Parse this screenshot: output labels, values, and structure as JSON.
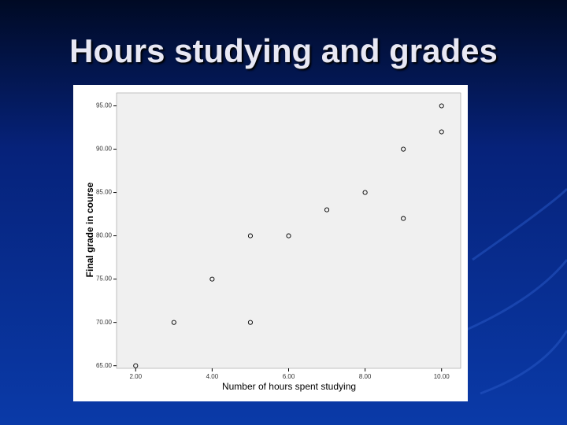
{
  "chart_data": {
    "type": "scatter",
    "title": "Hours studying and grades",
    "x_label": "Number of hours spent studying",
    "y_label": "Final grade in course",
    "series": [
      {
        "color": "#000000",
        "x": [
          2,
          3,
          4,
          5,
          5,
          6,
          7,
          8,
          9,
          9,
          10,
          10
        ],
        "values": [
          65,
          70,
          75,
          80,
          70,
          80,
          83,
          85,
          90,
          82,
          95,
          92
        ]
      }
    ],
    "xlim": [
      1.5,
      10.5
    ],
    "ylim": [
      64.7,
      96.5
    ],
    "xticks": [
      {
        "value": 2,
        "label": "2.00"
      },
      {
        "value": 4,
        "label": "4.00"
      },
      {
        "value": 6,
        "label": "6.00"
      },
      {
        "value": 8,
        "label": "8.00"
      },
      {
        "value": 10,
        "label": "10.00"
      }
    ],
    "yticks": [
      {
        "value": 65,
        "label": "65.00"
      },
      {
        "value": 70,
        "label": "70.00"
      },
      {
        "value": 75,
        "label": "75.00"
      },
      {
        "value": 80,
        "label": "80.00"
      },
      {
        "value": 85,
        "label": "85.00"
      },
      {
        "value": 90,
        "label": "90.00"
      },
      {
        "value": 95,
        "label": "95.00"
      }
    ]
  }
}
